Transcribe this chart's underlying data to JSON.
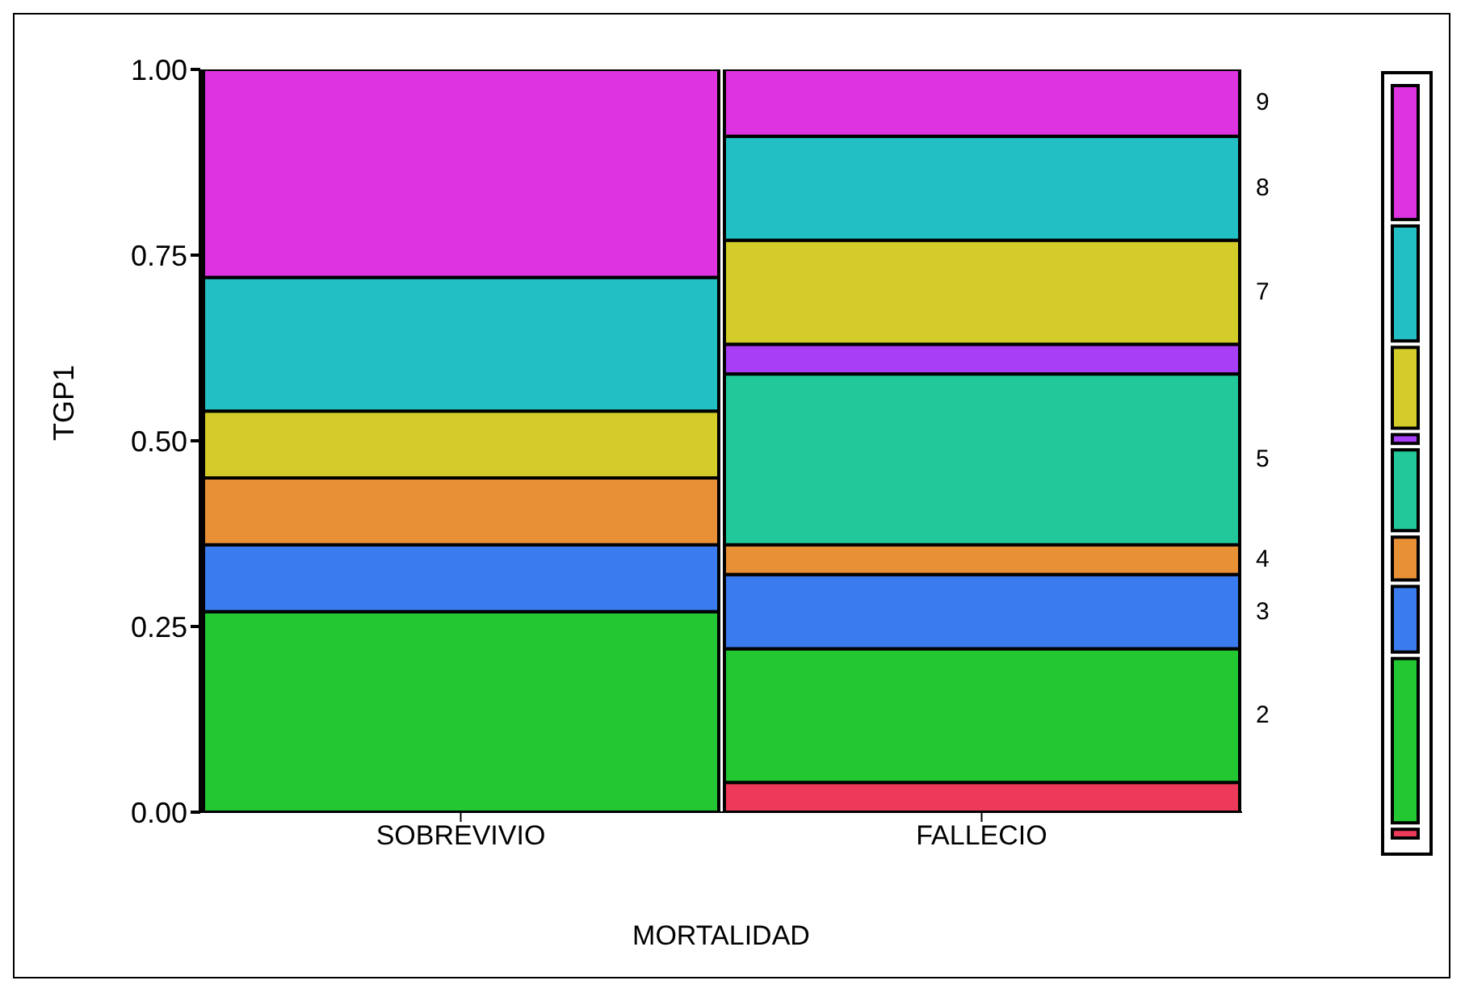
{
  "chart_data": {
    "type": "bar",
    "stacked": true,
    "xlabel": "MORTALIDAD",
    "ylabel": "TGP1",
    "categories": [
      "SOBREVIVIO",
      "FALLECIO"
    ],
    "ylim": [
      0,
      1
    ],
    "yticks": [
      {
        "value": 0,
        "label": "0.00"
      },
      {
        "value": 0.25,
        "label": "0.25"
      },
      {
        "value": 0.5,
        "label": "0.50"
      },
      {
        "value": 0.75,
        "label": "0.75"
      },
      {
        "value": 1,
        "label": "1.00"
      }
    ],
    "series": [
      {
        "color": "#ee3a5a",
        "values": [
          0,
          0.04
        ]
      },
      {
        "name": "2",
        "color": "#22c732",
        "values": [
          0.27,
          0.18
        ]
      },
      {
        "name": "3",
        "color": "#3a7cf0",
        "values": [
          0.09,
          0.1
        ]
      },
      {
        "name": "4",
        "color": "#e89035",
        "values": [
          0.09,
          0.04
        ]
      },
      {
        "name": "5",
        "color": "#22c79a",
        "values": [
          0,
          0.23
        ]
      },
      {
        "color": "#a83ef5",
        "values": [
          0,
          0.04
        ]
      },
      {
        "name": "7",
        "color": "#d4cc28",
        "values": [
          0.09,
          0.14
        ]
      },
      {
        "name": "8",
        "color": "#22c0c4",
        "values": [
          0.18,
          0.14
        ]
      },
      {
        "name": "9",
        "color": "#dd33e0",
        "values": [
          0.28,
          0.09
        ]
      }
    ]
  }
}
